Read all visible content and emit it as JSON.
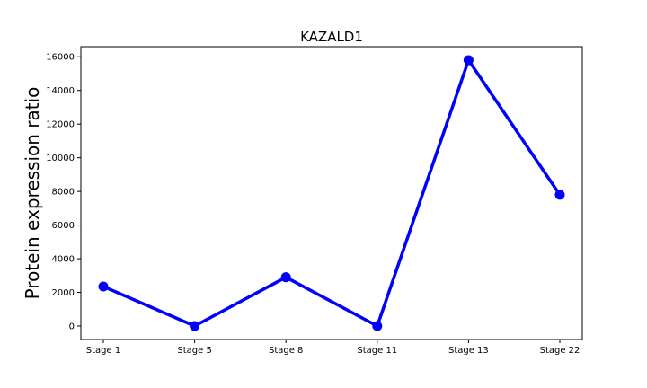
{
  "chart_data": {
    "type": "line",
    "title": "KAZALD1",
    "xlabel": "",
    "ylabel": "Protein expression ratio",
    "categories": [
      "Stage 1",
      "Stage 5",
      "Stage 8",
      "Stage 11",
      "Stage 13",
      "Stage 22"
    ],
    "series": [
      {
        "values": [
          2350,
          0,
          2900,
          0,
          15800,
          7800
        ],
        "color": "#0000ff"
      }
    ],
    "ylim": [
      -800,
      16600
    ],
    "yticks": [
      0,
      2000,
      4000,
      6000,
      8000,
      10000,
      12000,
      14000,
      16000
    ],
    "grid": false,
    "legend": "none"
  }
}
